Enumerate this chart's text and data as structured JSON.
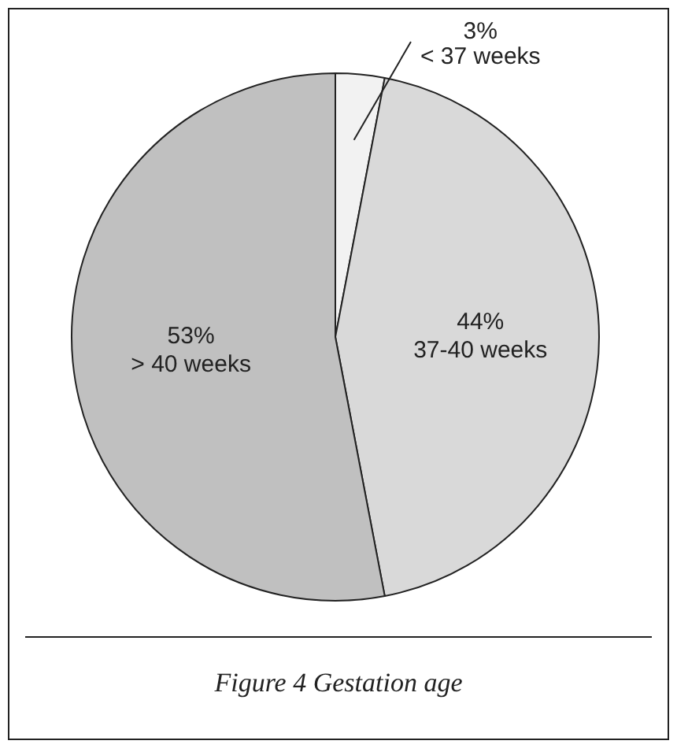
{
  "chart_data": {
    "type": "pie",
    "title": "Figure 4 Gestation age",
    "categories": [
      "< 37 weeks",
      "37-40 weeks",
      "> 40 weeks"
    ],
    "values": [
      3,
      44,
      53
    ],
    "value_labels": [
      "3%",
      "44%",
      "53%"
    ],
    "colors": [
      "#f2f2f2",
      "#d9d9d9",
      "#c0c0c0"
    ],
    "legend": false
  }
}
